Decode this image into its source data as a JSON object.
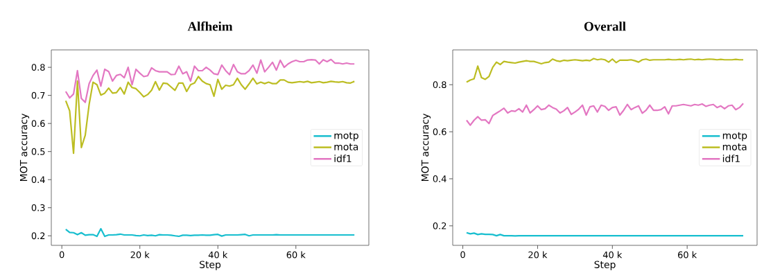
{
  "chart_data": [
    {
      "type": "line",
      "title": "Alfheim",
      "xlabel": "Step",
      "ylabel": "MOT accuracy",
      "legend": "right",
      "line_style": "solid",
      "grid": false,
      "x": [
        1000,
        2000,
        3000,
        4000,
        5000,
        6000,
        7000,
        8000,
        9000,
        10000,
        11000,
        12000,
        13000,
        14000,
        15000,
        16000,
        17000,
        18000,
        19000,
        20000,
        21000,
        22000,
        23000,
        24000,
        25000,
        26000,
        27000,
        28000,
        29000,
        30000,
        31000,
        32000,
        33000,
        34000,
        35000,
        36000,
        37000,
        38000,
        39000,
        40000,
        41000,
        42000,
        43000,
        44000,
        45000,
        46000,
        47000,
        48000,
        49000,
        50000,
        51000,
        52000,
        53000,
        54000,
        55000,
        56000,
        57000,
        58000,
        59000,
        60000,
        61000,
        62000,
        63000,
        64000,
        65000,
        66000,
        67000,
        68000,
        69000,
        70000,
        71000,
        72000,
        73000,
        74000,
        75000
      ],
      "xlim": [
        -2700,
        78700
      ],
      "ylim": [
        0.166,
        0.862
      ],
      "xticks": [
        {
          "value": 0,
          "label": "0"
        },
        {
          "value": 20000,
          "label": "20 k"
        },
        {
          "value": 40000,
          "label": "40 k"
        },
        {
          "value": 60000,
          "label": "60 k"
        }
      ],
      "yticks": [
        0.2,
        0.3,
        0.4,
        0.5,
        0.6,
        0.7,
        0.8
      ],
      "series": [
        {
          "name": "motp",
          "color": "#17becf",
          "values": [
            0.223,
            0.212,
            0.211,
            0.204,
            0.211,
            0.202,
            0.204,
            0.204,
            0.198,
            0.225,
            0.198,
            0.203,
            0.203,
            0.204,
            0.206,
            0.203,
            0.203,
            0.203,
            0.201,
            0.2,
            0.203,
            0.201,
            0.202,
            0.2,
            0.204,
            0.203,
            0.203,
            0.202,
            0.2,
            0.198,
            0.202,
            0.202,
            0.201,
            0.202,
            0.202,
            0.203,
            0.202,
            0.202,
            0.204,
            0.205,
            0.199,
            0.203,
            0.203,
            0.203,
            0.203,
            0.204,
            0.205,
            0.2,
            0.203,
            0.203,
            0.203,
            0.203,
            0.203,
            0.203,
            0.204,
            0.203,
            0.203,
            0.203,
            0.203,
            0.203,
            0.203,
            0.203,
            0.203,
            0.203,
            0.203,
            0.203,
            0.203,
            0.203,
            0.203,
            0.203,
            0.203,
            0.203,
            0.203,
            0.203,
            0.203
          ]
        },
        {
          "name": "mota",
          "color": "#bcbd22",
          "values": [
            0.681,
            0.645,
            0.494,
            0.751,
            0.514,
            0.558,
            0.668,
            0.747,
            0.738,
            0.701,
            0.708,
            0.726,
            0.708,
            0.71,
            0.728,
            0.705,
            0.747,
            0.728,
            0.724,
            0.71,
            0.695,
            0.703,
            0.718,
            0.749,
            0.719,
            0.744,
            0.742,
            0.73,
            0.718,
            0.744,
            0.744,
            0.714,
            0.738,
            0.744,
            0.767,
            0.751,
            0.742,
            0.738,
            0.697,
            0.757,
            0.722,
            0.736,
            0.733,
            0.738,
            0.761,
            0.738,
            0.722,
            0.741,
            0.761,
            0.741,
            0.747,
            0.742,
            0.747,
            0.742,
            0.742,
            0.755,
            0.755,
            0.747,
            0.745,
            0.747,
            0.749,
            0.747,
            0.75,
            0.745,
            0.747,
            0.749,
            0.745,
            0.747,
            0.75,
            0.748,
            0.747,
            0.749,
            0.745,
            0.744,
            0.75
          ]
        },
        {
          "name": "idf1",
          "color": "#e377c2",
          "values": [
            0.714,
            0.691,
            0.705,
            0.788,
            0.689,
            0.675,
            0.742,
            0.771,
            0.79,
            0.733,
            0.793,
            0.785,
            0.751,
            0.771,
            0.775,
            0.763,
            0.8,
            0.738,
            0.793,
            0.779,
            0.767,
            0.77,
            0.798,
            0.788,
            0.784,
            0.784,
            0.784,
            0.774,
            0.775,
            0.804,
            0.777,
            0.784,
            0.751,
            0.804,
            0.788,
            0.788,
            0.8,
            0.79,
            0.777,
            0.774,
            0.808,
            0.788,
            0.774,
            0.81,
            0.784,
            0.777,
            0.777,
            0.788,
            0.808,
            0.779,
            0.826,
            0.784,
            0.8,
            0.818,
            0.79,
            0.825,
            0.8,
            0.812,
            0.82,
            0.825,
            0.82,
            0.82,
            0.826,
            0.827,
            0.826,
            0.812,
            0.827,
            0.82,
            0.828,
            0.815,
            0.815,
            0.812,
            0.815,
            0.812,
            0.812
          ]
        }
      ]
    },
    {
      "type": "line",
      "title": "Overall",
      "xlabel": "Step",
      "ylabel": "MOT accuracy",
      "legend": "right",
      "line_style": "solid",
      "grid": false,
      "x": [
        1000,
        2000,
        3000,
        4000,
        5000,
        6000,
        7000,
        8000,
        9000,
        10000,
        11000,
        12000,
        13000,
        14000,
        15000,
        16000,
        17000,
        18000,
        19000,
        20000,
        21000,
        22000,
        23000,
        24000,
        25000,
        26000,
        27000,
        28000,
        29000,
        30000,
        31000,
        32000,
        33000,
        34000,
        35000,
        36000,
        37000,
        38000,
        39000,
        40000,
        41000,
        42000,
        43000,
        44000,
        45000,
        46000,
        47000,
        48000,
        49000,
        50000,
        51000,
        52000,
        53000,
        54000,
        55000,
        56000,
        57000,
        58000,
        59000,
        60000,
        61000,
        62000,
        63000,
        64000,
        65000,
        66000,
        67000,
        68000,
        69000,
        70000,
        71000,
        72000,
        73000,
        74000,
        75000
      ],
      "xlim": [
        -2700,
        78700
      ],
      "ylim": [
        0.117,
        0.948
      ],
      "xticks": [
        {
          "value": 0,
          "label": "0"
        },
        {
          "value": 20000,
          "label": "20 k"
        },
        {
          "value": 40000,
          "label": "40 k"
        },
        {
          "value": 60000,
          "label": "60 k"
        }
      ],
      "yticks": [
        0.2,
        0.4,
        0.6,
        0.8
      ],
      "series": [
        {
          "name": "motp",
          "color": "#17becf",
          "values": [
            0.171,
            0.166,
            0.169,
            0.163,
            0.166,
            0.164,
            0.164,
            0.163,
            0.158,
            0.163,
            0.158,
            0.158,
            0.158,
            0.157,
            0.158,
            0.158,
            0.158,
            0.158,
            0.158,
            0.158,
            0.158,
            0.158,
            0.158,
            0.158,
            0.158,
            0.158,
            0.158,
            0.158,
            0.158,
            0.158,
            0.158,
            0.158,
            0.158,
            0.158,
            0.158,
            0.158,
            0.158,
            0.158,
            0.158,
            0.158,
            0.158,
            0.158,
            0.158,
            0.158,
            0.158,
            0.158,
            0.158,
            0.158,
            0.158,
            0.158,
            0.158,
            0.158,
            0.158,
            0.158,
            0.158,
            0.158,
            0.158,
            0.158,
            0.158,
            0.158,
            0.158,
            0.158,
            0.158,
            0.158,
            0.158,
            0.158,
            0.158,
            0.158,
            0.158,
            0.158,
            0.158,
            0.158,
            0.158,
            0.158,
            0.158
          ]
        },
        {
          "name": "mota",
          "color": "#bcbd22",
          "values": [
            0.811,
            0.82,
            0.825,
            0.879,
            0.83,
            0.823,
            0.835,
            0.874,
            0.896,
            0.886,
            0.899,
            0.896,
            0.894,
            0.892,
            0.896,
            0.899,
            0.902,
            0.899,
            0.899,
            0.894,
            0.889,
            0.894,
            0.896,
            0.909,
            0.902,
            0.899,
            0.904,
            0.902,
            0.904,
            0.906,
            0.904,
            0.902,
            0.904,
            0.902,
            0.911,
            0.906,
            0.909,
            0.906,
            0.896,
            0.909,
            0.894,
            0.904,
            0.904,
            0.904,
            0.906,
            0.902,
            0.896,
            0.906,
            0.909,
            0.904,
            0.906,
            0.906,
            0.906,
            0.906,
            0.908,
            0.906,
            0.906,
            0.908,
            0.906,
            0.908,
            0.909,
            0.906,
            0.908,
            0.906,
            0.908,
            0.909,
            0.908,
            0.906,
            0.908,
            0.906,
            0.906,
            0.906,
            0.908,
            0.906,
            0.906
          ]
        },
        {
          "name": "idf1",
          "color": "#e377c2",
          "values": [
            0.649,
            0.628,
            0.649,
            0.664,
            0.649,
            0.651,
            0.635,
            0.669,
            0.679,
            0.689,
            0.7,
            0.68,
            0.689,
            0.687,
            0.698,
            0.684,
            0.713,
            0.68,
            0.694,
            0.71,
            0.694,
            0.698,
            0.713,
            0.703,
            0.696,
            0.68,
            0.689,
            0.703,
            0.674,
            0.684,
            0.696,
            0.713,
            0.671,
            0.706,
            0.71,
            0.684,
            0.713,
            0.708,
            0.691,
            0.703,
            0.706,
            0.671,
            0.691,
            0.716,
            0.694,
            0.703,
            0.71,
            0.679,
            0.691,
            0.713,
            0.691,
            0.691,
            0.694,
            0.706,
            0.676,
            0.71,
            0.71,
            0.713,
            0.716,
            0.713,
            0.71,
            0.716,
            0.713,
            0.718,
            0.708,
            0.713,
            0.716,
            0.703,
            0.71,
            0.698,
            0.71,
            0.713,
            0.694,
            0.703,
            0.72
          ]
        }
      ]
    }
  ]
}
